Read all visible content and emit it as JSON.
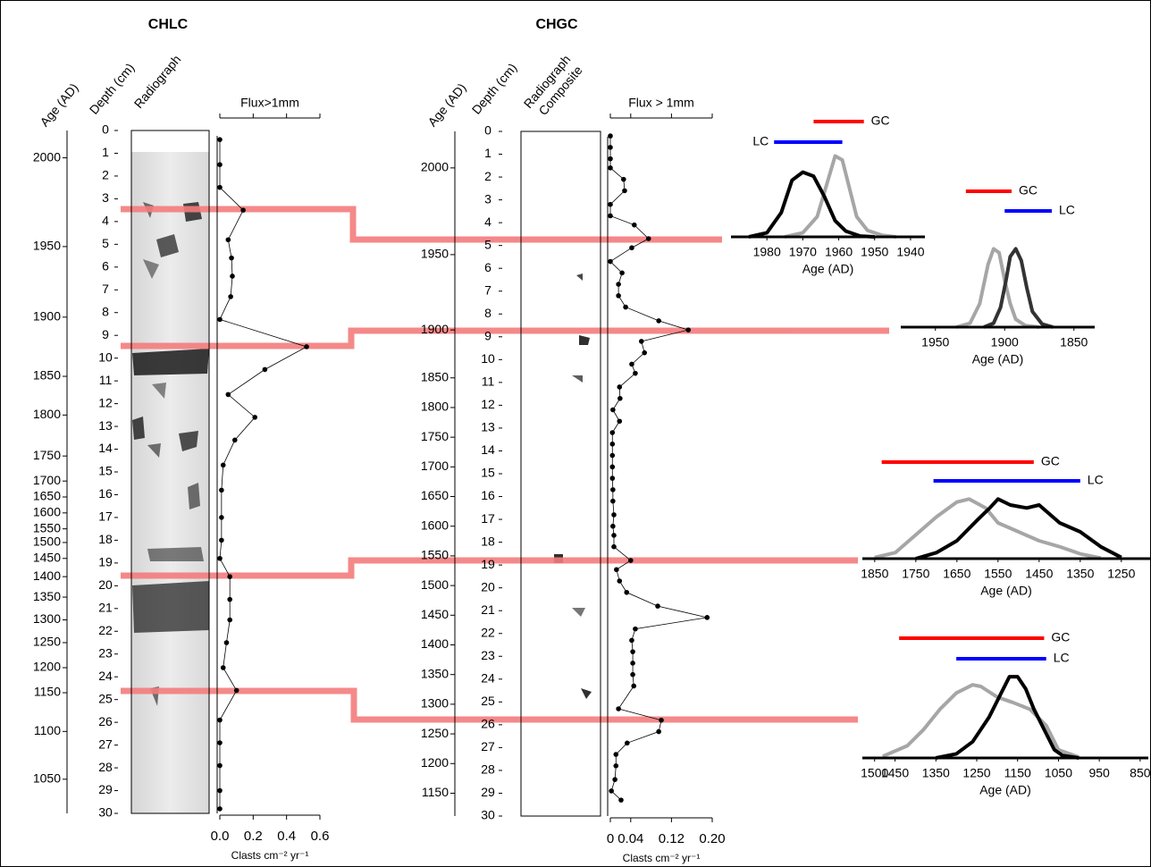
{
  "chart_data": [
    {
      "type": "core",
      "title": "CHLC",
      "age_label": "Age (AD)",
      "depth_label": "Depth (cm)",
      "image_label": [
        "Radiograph"
      ],
      "flux_label": "Flux>1mm",
      "xlabel": "Clasts cm⁻² yr⁻¹",
      "depth_lim": [
        0,
        30
      ],
      "depth_ticks": [
        0,
        1,
        2,
        3,
        4,
        5,
        6,
        7,
        8,
        9,
        10,
        11,
        12,
        13,
        14,
        15,
        16,
        17,
        18,
        19,
        20,
        21,
        22,
        23,
        24,
        25,
        26,
        27,
        28,
        29,
        30
      ],
      "age_ticks": [
        {
          "value": 1.2,
          "label": "2000"
        },
        {
          "value": 5.1,
          "label": "1950"
        },
        {
          "value": 8.2,
          "label": "1900"
        },
        {
          "value": 10.8,
          "label": "1850"
        },
        {
          "value": 12.5,
          "label": "1800"
        },
        {
          "value": 14.3,
          "label": "1750"
        },
        {
          "value": 15.4,
          "label": "1700"
        },
        {
          "value": 16.1,
          "label": "1650"
        },
        {
          "value": 16.8,
          "label": "1600"
        },
        {
          "value": 17.5,
          "label": "1550"
        },
        {
          "value": 18.1,
          "label": "1500"
        },
        {
          "value": 18.8,
          "label": "1450"
        },
        {
          "value": 19.6,
          "label": "1400"
        },
        {
          "value": 20.5,
          "label": "1350"
        },
        {
          "value": 21.5,
          "label": "1300"
        },
        {
          "value": 22.5,
          "label": "1250"
        },
        {
          "value": 23.6,
          "label": "1200"
        },
        {
          "value": 24.7,
          "label": "1150"
        },
        {
          "value": 26.4,
          "label": "1100"
        },
        {
          "value": 28.5,
          "label": "1050"
        }
      ],
      "x": [
        0.4,
        1.5,
        2.5,
        3.5,
        4.8,
        5.6,
        6.4,
        7.3,
        8.3,
        9.5,
        10.5,
        11.6,
        12.6,
        13.6,
        14.7,
        15.8,
        17,
        18,
        18.8,
        19.6,
        20.6,
        21.5,
        22.5,
        23.6,
        24.6,
        25.9,
        26.9,
        27.9,
        29,
        29.8
      ],
      "values": [
        0,
        0,
        0,
        0.14,
        0.05,
        0.07,
        0.075,
        0.065,
        0,
        0.52,
        0.27,
        0.05,
        0.21,
        0.09,
        0.02,
        0.01,
        0.01,
        0.01,
        0,
        0.06,
        0.06,
        0.06,
        0.04,
        0.02,
        0.1,
        0,
        0,
        0,
        0,
        0
      ],
      "xlim": [
        0,
        0.6
      ],
      "xticks": [
        {
          "value": 0,
          "label": "0.0"
        },
        0.2,
        0.4,
        0.6
      ],
      "color": "#000000"
    },
    {
      "type": "core",
      "title": "CHGC",
      "age_label": "Age (AD)",
      "depth_label": "Depth (cm)",
      "image_label": [
        "Radiograph",
        "Composite"
      ],
      "flux_label": "Flux > 1mm",
      "xlabel": "Clasts cm⁻² yr⁻¹",
      "depth_lim": [
        0,
        30
      ],
      "depth_ticks": [
        0,
        1,
        2,
        3,
        4,
        5,
        6,
        7,
        8,
        9,
        10,
        11,
        12,
        13,
        14,
        15,
        16,
        17,
        18,
        19,
        20,
        21,
        22,
        23,
        24,
        25,
        26,
        27,
        28,
        29,
        30
      ],
      "age_ticks": [
        {
          "value": 1.6,
          "label": "2000"
        },
        {
          "value": 5.4,
          "label": "1950"
        },
        {
          "value": 8.7,
          "label": "1900"
        },
        {
          "value": 10.8,
          "label": "1850"
        },
        {
          "value": 12.1,
          "label": "1800"
        },
        {
          "value": 13.4,
          "label": "1750"
        },
        {
          "value": 14.7,
          "label": "1700"
        },
        {
          "value": 16,
          "label": "1650"
        },
        {
          "value": 17.3,
          "label": "1600"
        },
        {
          "value": 18.6,
          "label": "1550"
        },
        {
          "value": 19.9,
          "label": "1500"
        },
        {
          "value": 21.2,
          "label": "1450"
        },
        {
          "value": 22.5,
          "label": "1400"
        },
        {
          "value": 23.8,
          "label": "1350"
        },
        {
          "value": 25.1,
          "label": "1300"
        },
        {
          "value": 26.4,
          "label": "1250"
        },
        {
          "value": 27.7,
          "label": "1200"
        },
        {
          "value": 29,
          "label": "1150"
        }
      ],
      "x": [
        0.2,
        0.7,
        1.2,
        1.6,
        2.1,
        2.6,
        3.2,
        3.7,
        4.1,
        4.7,
        5.1,
        5.7,
        6.2,
        6.7,
        7.2,
        7.7,
        8.3,
        8.7,
        9.2,
        9.7,
        10.2,
        10.6,
        11.2,
        11.7,
        12.2,
        12.7,
        13.2,
        13.7,
        14.2,
        14.7,
        15.2,
        15.7,
        16.2,
        16.8,
        17.3,
        17.7,
        18.2,
        18.8,
        19.2,
        19.7,
        20.2,
        20.8,
        21.3,
        21.8,
        22.3,
        22.8,
        23.3,
        23.8,
        24.3,
        25.3,
        25.8,
        26.3,
        26.8,
        27.3,
        27.8,
        28.4,
        28.9,
        29.3
      ],
      "values": [
        0,
        0,
        0,
        0,
        0.026,
        0.028,
        0,
        0,
        0.047,
        0.075,
        0.042,
        0,
        0.023,
        0.016,
        0.016,
        0.03,
        0.095,
        0.153,
        0.061,
        0.067,
        0.042,
        0.049,
        0.018,
        0.019,
        0.005,
        0.018,
        0.004,
        0.004,
        0.004,
        0.004,
        0.004,
        0.005,
        0.005,
        0.007,
        0.005,
        0.007,
        0.007,
        0.04,
        0.012,
        0.018,
        0.032,
        0.093,
        0.19,
        0.049,
        0.042,
        0.044,
        0.044,
        0.044,
        0.046,
        0.016,
        0.1,
        0.095,
        0.033,
        0.011,
        0.011,
        0.009,
        0.002,
        0.021
      ],
      "xlim": [
        0,
        0.2
      ],
      "xticks": [
        0,
        0.04,
        0.12,
        {
          "value": 0.2,
          "label": "0.20"
        }
      ],
      "color": "#000000"
    },
    {
      "type": "density",
      "xlabel": "Age (AD)",
      "xlim": [
        1990,
        1936
      ],
      "xticks": [
        1980,
        1970,
        1960,
        1950,
        1940
      ],
      "ylim": [
        0,
        1.05
      ],
      "series": [
        {
          "name": "GC",
          "color": "#a6a6a6",
          "bar_color": "#ff0000",
          "range": [
            1967,
            1953
          ],
          "x": [
            1975,
            1970,
            1966,
            1963,
            1961,
            1959,
            1957,
            1955,
            1952,
            1948,
            1944
          ],
          "values": [
            0,
            0.05,
            0.25,
            0.7,
            1.0,
            0.95,
            0.6,
            0.25,
            0.08,
            0.02,
            0
          ]
        },
        {
          "name": "LC",
          "color": "#000000",
          "bar_color": "#0000ff",
          "range": [
            1978,
            1959
          ],
          "x": [
            1985,
            1980,
            1976,
            1973,
            1970,
            1967,
            1964,
            1961,
            1958,
            1954,
            1950
          ],
          "values": [
            0,
            0.05,
            0.3,
            0.7,
            0.8,
            0.75,
            0.5,
            0.2,
            0.07,
            0.01,
            0
          ]
        }
      ]
    },
    {
      "type": "density",
      "xlabel": "Age (AD)",
      "xlim": [
        1975,
        1835
      ],
      "xticks": [
        1950,
        1900,
        1850
      ],
      "ylim": [
        0,
        1.05
      ],
      "series": [
        {
          "name": "GC",
          "color": "#a6a6a6",
          "bar_color": "#ff0000",
          "range": [
            1928,
            1895
          ],
          "x": [
            1935,
            1925,
            1918,
            1912,
            1908,
            1904,
            1900,
            1896,
            1892,
            1885,
            1875
          ],
          "values": [
            0,
            0.05,
            0.3,
            0.8,
            1.0,
            0.95,
            0.6,
            0.3,
            0.1,
            0.02,
            0
          ]
        },
        {
          "name": "LC",
          "color": "#333333",
          "bar_color": "#0000ff",
          "range": [
            1900,
            1866
          ],
          "x": [
            1915,
            1908,
            1903,
            1899,
            1896,
            1892,
            1888,
            1884,
            1880,
            1873,
            1865
          ],
          "values": [
            0,
            0.05,
            0.25,
            0.6,
            0.9,
            1.0,
            0.85,
            0.5,
            0.2,
            0.04,
            0
          ]
        }
      ]
    },
    {
      "type": "density",
      "xlabel": "Age (AD)",
      "xlim": [
        1880,
        1180
      ],
      "xticks": [
        1850,
        1750,
        1650,
        1550,
        1450,
        1350,
        1250
      ],
      "ylim": [
        0,
        1.05
      ],
      "series": [
        {
          "name": "GC",
          "color": "#a6a6a6",
          "bar_color": "#ff0000",
          "range": [
            1833,
            1463
          ],
          "x": [
            1850,
            1800,
            1750,
            1700,
            1650,
            1620,
            1580,
            1550,
            1500,
            1450,
            1400,
            1350,
            1300
          ],
          "values": [
            0.02,
            0.1,
            0.4,
            0.7,
            0.95,
            1.0,
            0.85,
            0.6,
            0.45,
            0.3,
            0.2,
            0.08,
            0.01
          ]
        },
        {
          "name": "LC",
          "color": "#000000",
          "bar_color": "#0000ff",
          "range": [
            1707,
            1350
          ],
          "x": [
            1750,
            1700,
            1650,
            1600,
            1570,
            1550,
            1520,
            1480,
            1450,
            1400,
            1350,
            1300,
            1250
          ],
          "values": [
            0,
            0.1,
            0.3,
            0.65,
            0.85,
            1.0,
            0.9,
            0.85,
            0.9,
            0.6,
            0.45,
            0.2,
            0.02
          ]
        }
      ]
    },
    {
      "type": "density",
      "xlabel": "Age (AD)",
      "xlim": [
        1530,
        830
      ],
      "xticks": [
        1500,
        1450,
        1350,
        1250,
        1150,
        1050,
        950,
        850
      ],
      "ylim": [
        0,
        1.1
      ],
      "series": [
        {
          "name": "GC",
          "color": "#a6a6a6",
          "bar_color": "#ff0000",
          "range": [
            1440,
            1085
          ],
          "x": [
            1480,
            1420,
            1380,
            1340,
            1300,
            1260,
            1240,
            1200,
            1160,
            1120,
            1080,
            1050,
            1000
          ],
          "values": [
            0.02,
            0.15,
            0.35,
            0.6,
            0.8,
            0.9,
            0.88,
            0.75,
            0.68,
            0.6,
            0.4,
            0.1,
            0.01
          ]
        },
        {
          "name": "LC",
          "color": "#000000",
          "bar_color": "#0000ff",
          "range": [
            1300,
            1080
          ],
          "x": [
            1350,
            1300,
            1260,
            1220,
            1190,
            1170,
            1150,
            1130,
            1110,
            1080,
            1060,
            1040,
            1000
          ],
          "values": [
            0,
            0.05,
            0.2,
            0.5,
            0.8,
            1.0,
            1.0,
            0.85,
            0.6,
            0.3,
            0.1,
            0.03,
            0
          ]
        }
      ]
    }
  ]
}
